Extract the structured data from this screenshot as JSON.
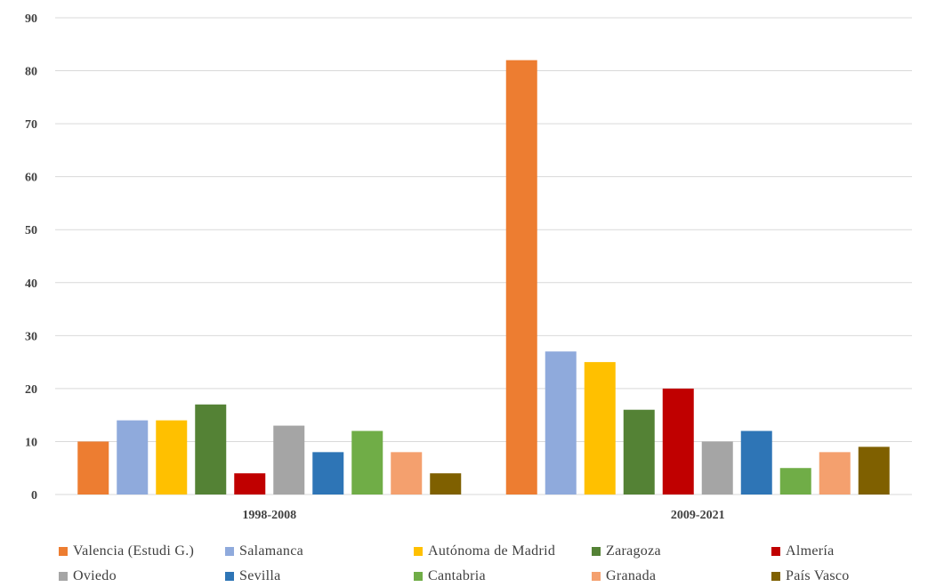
{
  "chart_data": {
    "type": "bar",
    "categories": [
      "1998-2008",
      "2009-2021"
    ],
    "ylim": [
      0,
      90
    ],
    "yticks": [
      0,
      10,
      20,
      30,
      40,
      50,
      60,
      70,
      80,
      90
    ],
    "grid": true,
    "legend_position": "bottom",
    "series": [
      {
        "name": "Valencia (Estudi G.)",
        "color": "#ED7D31",
        "values": [
          10,
          82
        ]
      },
      {
        "name": "Salamanca",
        "color": "#8FAADC",
        "values": [
          14,
          27
        ]
      },
      {
        "name": "Autónoma de Madrid",
        "color": "#FFC000",
        "values": [
          14,
          25
        ]
      },
      {
        "name": "Zaragoza",
        "color": "#548235",
        "values": [
          17,
          16
        ]
      },
      {
        "name": "Almería",
        "color": "#C00000",
        "values": [
          4,
          20
        ]
      },
      {
        "name": "Oviedo",
        "color": "#A5A5A5",
        "values": [
          13,
          10
        ]
      },
      {
        "name": "Sevilla",
        "color": "#2E75B6",
        "values": [
          8,
          12
        ]
      },
      {
        "name": "Cantabria",
        "color": "#70AD47",
        "values": [
          12,
          5
        ]
      },
      {
        "name": "Granada",
        "color": "#F4A06E",
        "values": [
          8,
          8
        ]
      },
      {
        "name": "País Vasco",
        "color": "#7F6000",
        "values": [
          4,
          9
        ]
      }
    ]
  }
}
